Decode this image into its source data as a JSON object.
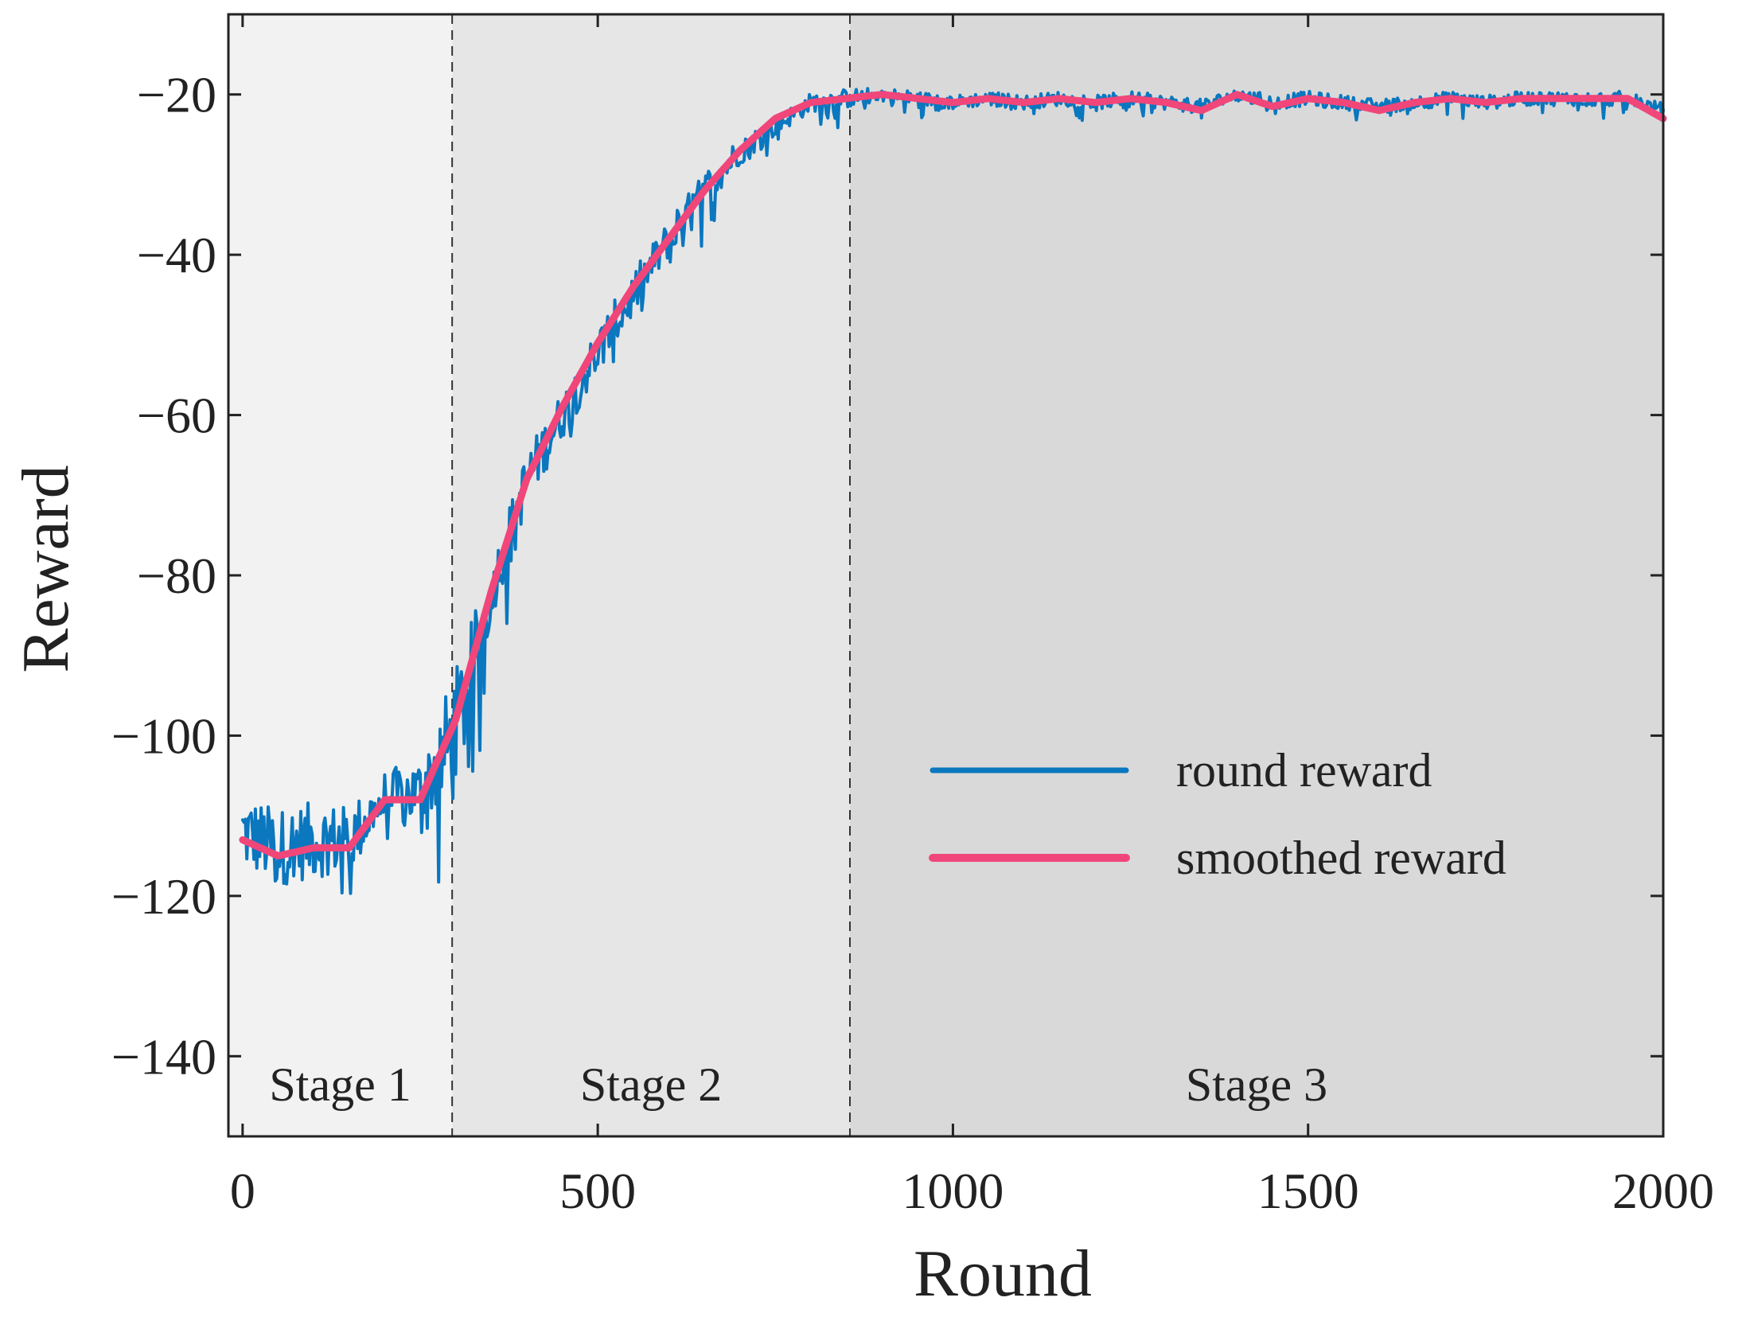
{
  "chart_data": {
    "type": "line",
    "xlabel": "Round",
    "ylabel": "Reward",
    "xlim": [
      -20,
      2000
    ],
    "ylim": [
      -150,
      -10
    ],
    "xticks": [
      0,
      500,
      1000,
      1500,
      2000
    ],
    "yticks": [
      -140,
      -120,
      -100,
      -80,
      -60,
      -40,
      -20
    ],
    "xtick_labels": [
      "0",
      "500",
      "1000",
      "1500",
      "2000"
    ],
    "ytick_labels": [
      "−140",
      "−120",
      "−100",
      "−80",
      "−60",
      "−40",
      "−20"
    ],
    "grid": false,
    "legend_position": "lower-right",
    "stages": [
      {
        "label": "Stage 1",
        "start": -20,
        "end": 295,
        "color": "#f2f2f2"
      },
      {
        "label": "Stage 2",
        "start": 295,
        "end": 855,
        "color": "#e6e6e6"
      },
      {
        "label": "Stage 3",
        "start": 855,
        "end": 2000,
        "color": "#d9d9d9"
      }
    ],
    "series": [
      {
        "name": "round reward",
        "color": "#0a77bf",
        "x": [
          0,
          50,
          100,
          150,
          200,
          250,
          300,
          350,
          400,
          450,
          500,
          550,
          600,
          650,
          700,
          750,
          800,
          850,
          900,
          950,
          1000,
          1050,
          1100,
          1150,
          1200,
          1250,
          1300,
          1350,
          1400,
          1450,
          1500,
          1550,
          1600,
          1650,
          1700,
          1750,
          1800,
          1850,
          1900,
          1950,
          2000
        ],
        "y": [
          -112,
          -114,
          -113,
          -113,
          -108,
          -107,
          -100,
          -82,
          -68,
          -60,
          -52,
          -45,
          -38,
          -32,
          -27,
          -24,
          -21,
          -20.5,
          -20,
          -20.5,
          -21,
          -20.5,
          -21,
          -20.5,
          -21,
          -20.5,
          -21,
          -21.5,
          -20,
          -21,
          -20.5,
          -21,
          -21.5,
          -21,
          -20.5,
          -21,
          -20.5,
          -20.5,
          -20.5,
          -20.5,
          -22
        ],
        "noise_amplitude": [
          8,
          8,
          8,
          7,
          6,
          7,
          14,
          6,
          6,
          5,
          5,
          5,
          4,
          4,
          3,
          2,
          2,
          2,
          1.5,
          1.5,
          1.5,
          1.5,
          1.5,
          1.5,
          1.5,
          1.5,
          1.5,
          1.5,
          1.5,
          1.5,
          1.5,
          1.5,
          1.5,
          1.5,
          1.5,
          1.5,
          1.5,
          1.5,
          1.5,
          1.5,
          1.5
        ]
      },
      {
        "name": "smoothed reward",
        "color": "#f0467a",
        "x": [
          0,
          50,
          100,
          150,
          200,
          250,
          300,
          350,
          400,
          450,
          500,
          550,
          600,
          650,
          700,
          750,
          800,
          850,
          900,
          950,
          1000,
          1050,
          1100,
          1150,
          1200,
          1250,
          1300,
          1350,
          1400,
          1450,
          1500,
          1550,
          1600,
          1650,
          1700,
          1750,
          1800,
          1850,
          1900,
          1950,
          2000
        ],
        "y": [
          -113,
          -115,
          -114,
          -114,
          -108,
          -108,
          -98,
          -82,
          -68,
          -59,
          -51,
          -44,
          -38,
          -32,
          -27,
          -23,
          -21,
          -20.5,
          -20,
          -20.5,
          -21,
          -20.5,
          -21,
          -20.5,
          -21,
          -20.5,
          -21,
          -22,
          -20,
          -21.5,
          -20.5,
          -21,
          -22,
          -21,
          -20.5,
          -21,
          -20.5,
          -20.5,
          -20.5,
          -20.5,
          -23
        ]
      }
    ]
  }
}
